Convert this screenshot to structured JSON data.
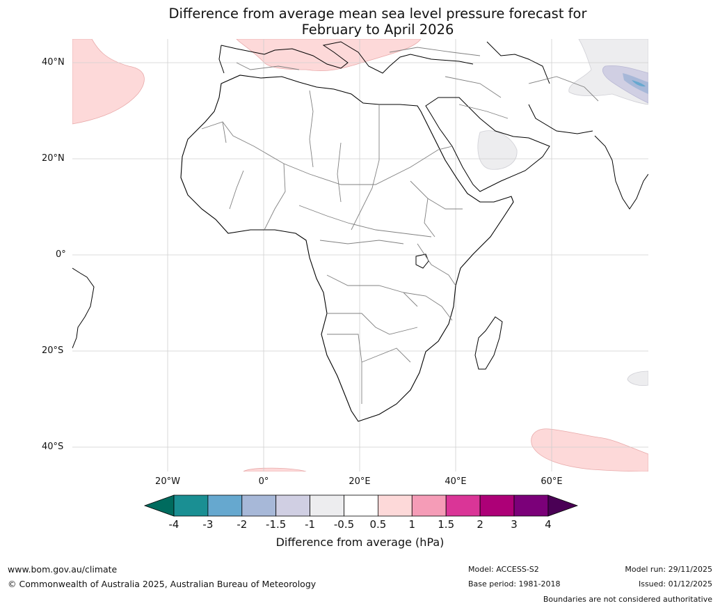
{
  "title": {
    "line1": "Difference from average mean sea level pressure forecast for",
    "line2": "February to April 2026"
  },
  "map": {
    "lat_labels": [
      "40°N",
      "20°N",
      "0°",
      "20°S",
      "40°S"
    ],
    "lon_labels": [
      "20°W",
      "0°",
      "20°E",
      "40°E",
      "60°E"
    ]
  },
  "colorbar": {
    "ticks": [
      "-4",
      "-3",
      "-2",
      "-1.5",
      "-1",
      "-0.5",
      "0.5",
      "1",
      "1.5",
      "2",
      "3",
      "4"
    ],
    "colors": [
      "#1a8f93",
      "#66a8cf",
      "#a7b8d8",
      "#d0cfe3",
      "#ededef",
      "#ffffff",
      "#fdd9d9",
      "#f59cb7",
      "#da3597",
      "#ad0077",
      "#7b0079"
    ],
    "under_color": "#006b5e",
    "over_color": "#4a0055",
    "label": "Difference from average (hPa)"
  },
  "footer": {
    "website": "www.bom.gov.au/climate",
    "copyright": "© Commonwealth of Australia 2025, Australian Bureau of Meteorology",
    "model": "Model: ACCESS-S2",
    "base_period": "Base period: 1981-2018",
    "model_run": "Model run: 29/11/2025",
    "issued": "Issued: 01/12/2025",
    "disclaimer": "Boundaries are not considered authoritative"
  }
}
